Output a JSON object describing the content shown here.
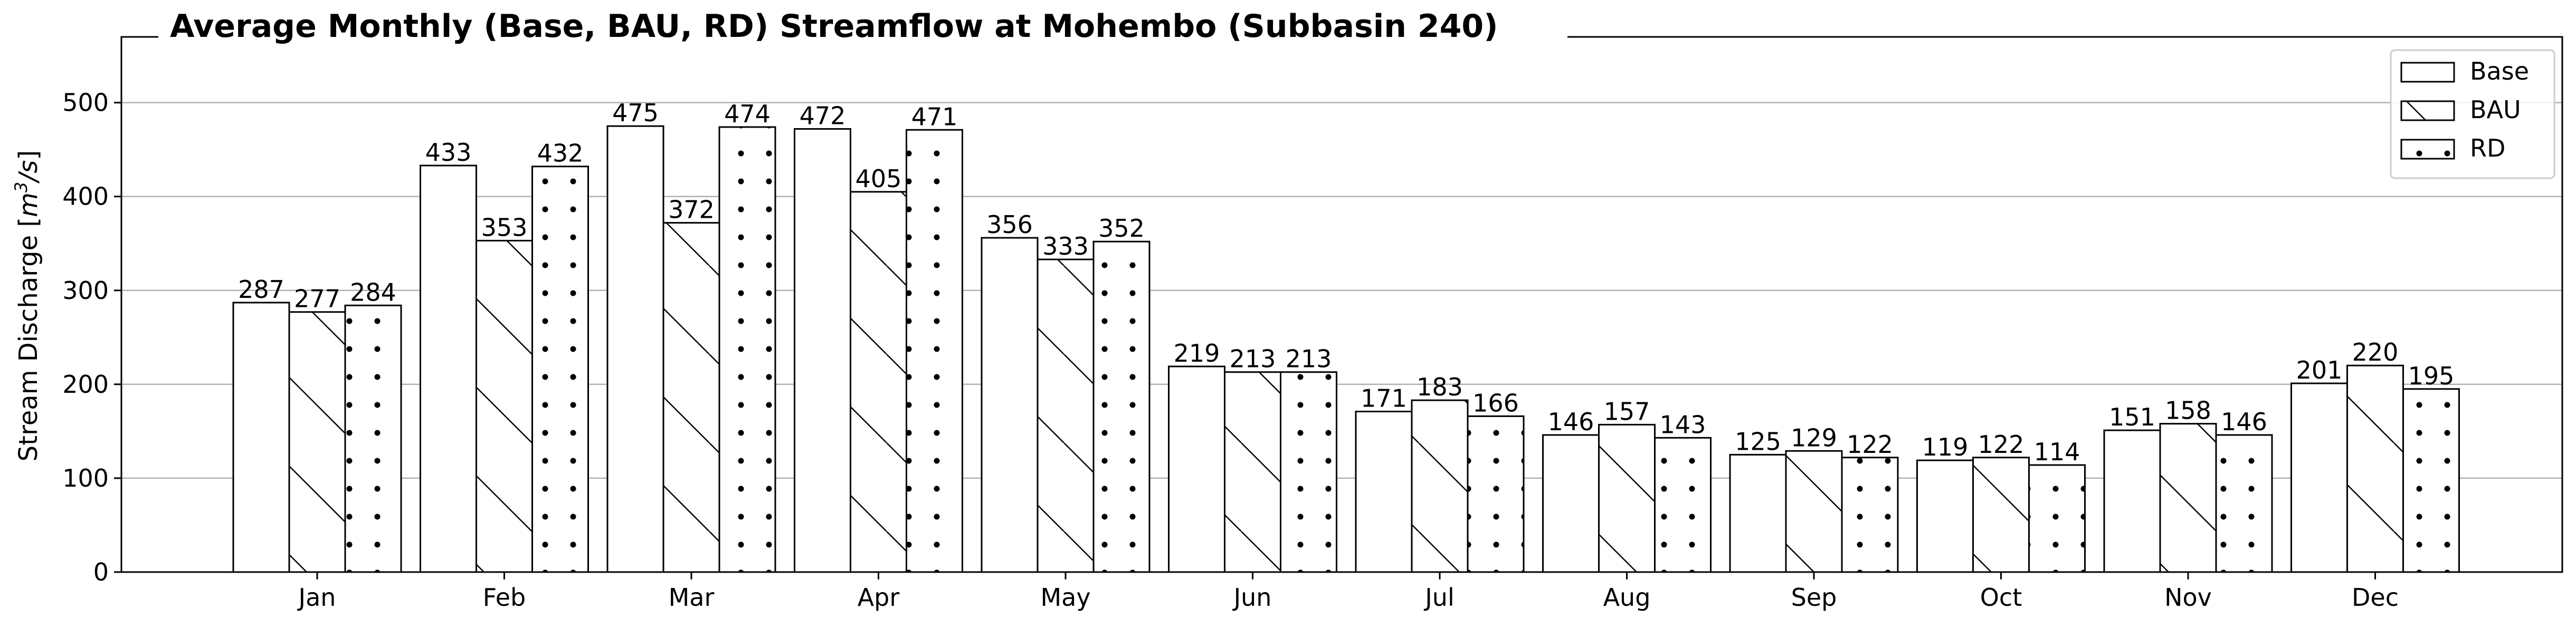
{
  "chart_data": {
    "type": "bar",
    "title": "Average Monthly (Base, BAU, RD) Streamflow at Mohembo (Subbasin 240)",
    "xlabel": "",
    "ylabel": "Stream Discharge [m³/s]",
    "ylabel_base": "Stream Discharge [",
    "ylabel_unit_main": "m",
    "ylabel_unit_sup": "3",
    "ylabel_unit_rest": "/s",
    "ylabel_close": "]",
    "categories": [
      "Jan",
      "Feb",
      "Mar",
      "Apr",
      "May",
      "Jun",
      "Jul",
      "Aug",
      "Sep",
      "Oct",
      "Nov",
      "Dec"
    ],
    "series": [
      {
        "name": "Base",
        "pattern": "none",
        "values": [
          287,
          433,
          475,
          472,
          356,
          219,
          171,
          146,
          125,
          119,
          151,
          201
        ]
      },
      {
        "name": "BAU",
        "pattern": "diagonal-hatch",
        "values": [
          277,
          353,
          372,
          405,
          333,
          213,
          183,
          157,
          129,
          122,
          158,
          220
        ]
      },
      {
        "name": "RD",
        "pattern": "dots",
        "values": [
          284,
          432,
          474,
          471,
          352,
          213,
          166,
          143,
          122,
          114,
          146,
          195
        ]
      }
    ],
    "yticks": [
      0,
      100,
      200,
      300,
      400,
      500
    ],
    "ylim": [
      0,
      570
    ],
    "grid": "horizontal",
    "legend_position": "top-right",
    "colors": {
      "bar_fill": "#ffffff",
      "bar_edge": "#000000",
      "grid": "#b0b0b0"
    }
  }
}
